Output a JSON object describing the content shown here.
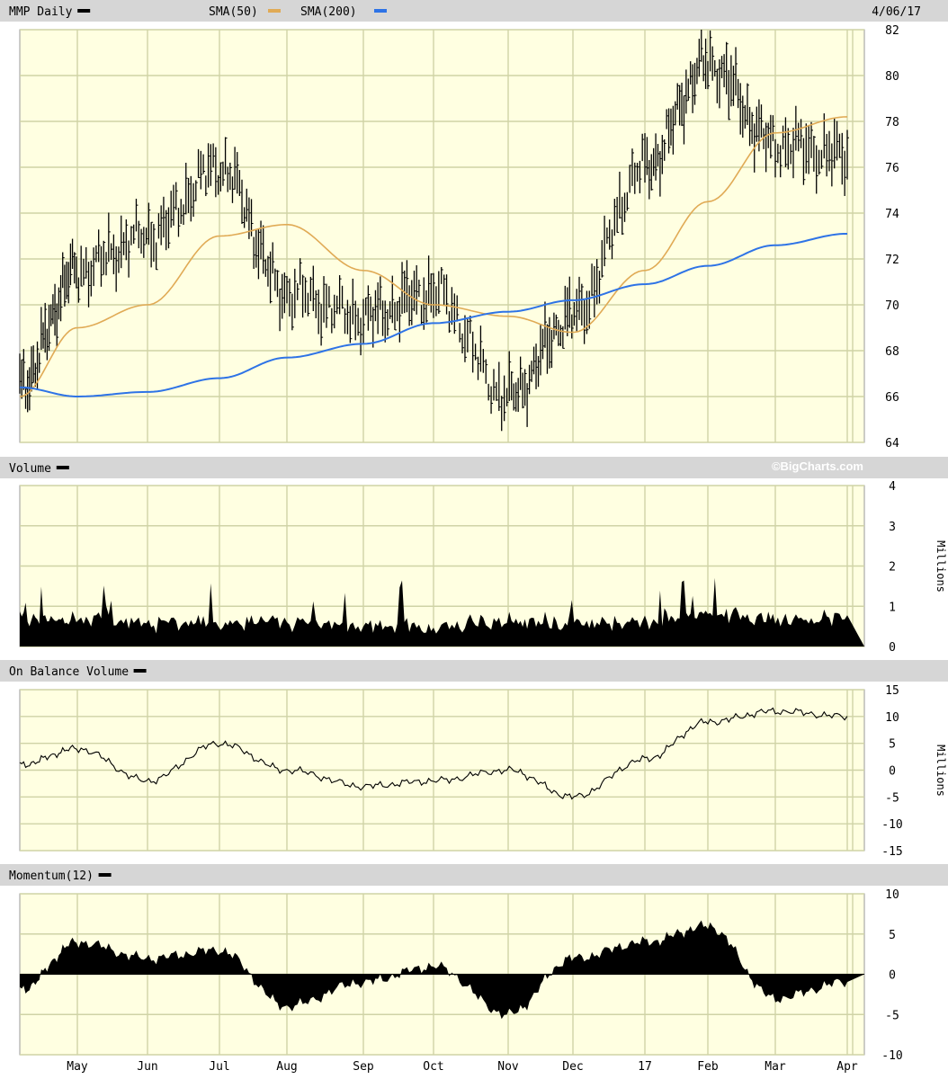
{
  "header": {
    "symbol_label": "MMP Daily",
    "sma50_label": "SMA(50)",
    "sma200_label": "SMA(200)",
    "date": "4/06/17"
  },
  "copyright": "©BigCharts.com",
  "colors": {
    "plot_bg": "#ffffe1",
    "grid": "#cfd3a6",
    "header_bg": "#d6d6d6",
    "price": "#000000",
    "sma50": "#e0aa55",
    "sma200": "#2e73e6"
  },
  "months": [
    "May",
    "Jun",
    "Jul",
    "Aug",
    "Sep",
    "Oct",
    "Nov",
    "Dec",
    "17",
    "Feb",
    "Mar",
    "Apr"
  ],
  "chart_data": [
    {
      "type": "bar",
      "title": "MMP Daily",
      "ylim": [
        64,
        82
      ],
      "y_ticks": [
        64,
        66,
        68,
        70,
        72,
        74,
        76,
        78,
        80,
        82
      ],
      "series": [
        {
          "name": "MMP Daily",
          "x": [
            "Apr 2016",
            "May",
            "Jun",
            "Jul",
            "Aug",
            "Sep",
            "Oct",
            "Nov",
            "Dec",
            "17",
            "Feb",
            "Mar",
            "Apr 2017"
          ],
          "values": [
            66.5,
            71.5,
            73.0,
            76.0,
            70.5,
            69.5,
            70.5,
            66.0,
            69.5,
            76.0,
            80.5,
            77.0,
            76.5
          ]
        },
        {
          "name": "SMA(50)",
          "x": [
            "Apr 2016",
            "May",
            "Jun",
            "Jul",
            "Aug",
            "Sep",
            "Oct",
            "Nov",
            "Dec",
            "17",
            "Feb",
            "Mar",
            "Apr 2017"
          ],
          "values": [
            66.0,
            69.0,
            70.0,
            73.0,
            73.5,
            71.5,
            70.0,
            69.5,
            68.8,
            71.5,
            74.5,
            77.5,
            78.2
          ]
        },
        {
          "name": "SMA(200)",
          "x": [
            "Apr 2016",
            "May",
            "Jun",
            "Jul",
            "Aug",
            "Sep",
            "Oct",
            "Nov",
            "Dec",
            "17",
            "Feb",
            "Mar",
            "Apr 2017"
          ],
          "values": [
            66.4,
            66.0,
            66.2,
            66.8,
            67.7,
            68.3,
            69.2,
            69.7,
            70.2,
            70.9,
            71.7,
            72.6,
            73.1
          ]
        }
      ]
    },
    {
      "type": "area",
      "title": "Volume",
      "ylabel": "Millions",
      "ylim": [
        0,
        4
      ],
      "y_ticks": [
        0,
        1,
        2,
        3,
        4
      ],
      "series": [
        {
          "name": "Volume",
          "x": [
            "Apr 2016",
            "May",
            "Jun",
            "Jul",
            "Aug",
            "Sep",
            "Oct",
            "Nov",
            "Dec",
            "17",
            "Feb",
            "Mar",
            "Apr 2017"
          ],
          "values": [
            0.7,
            0.7,
            0.6,
            0.6,
            0.6,
            0.5,
            0.5,
            0.6,
            0.6,
            0.6,
            0.8,
            0.7,
            0.7
          ]
        }
      ]
    },
    {
      "type": "line",
      "title": "On Balance Volume",
      "ylabel": "Millions",
      "ylim": [
        -15,
        15
      ],
      "y_ticks": [
        -15,
        -10,
        -5,
        0,
        5,
        10,
        15
      ],
      "series": [
        {
          "name": "On Balance Volume",
          "x": [
            "Apr 2016",
            "May",
            "Jun",
            "Jul",
            "Aug",
            "Sep",
            "Oct",
            "Nov",
            "Dec",
            "17",
            "Feb",
            "Mar",
            "Apr 2017"
          ],
          "values": [
            1,
            4,
            -2,
            5,
            0,
            -3,
            -2,
            0,
            -5,
            2,
            9,
            11,
            10
          ]
        }
      ]
    },
    {
      "type": "area",
      "title": "Momentum(12)",
      "ylim": [
        -10,
        10
      ],
      "y_ticks": [
        -10,
        -5,
        0,
        5,
        10
      ],
      "series": [
        {
          "name": "Momentum(12)",
          "x": [
            "Apr 2016",
            "May",
            "Jun",
            "Jul",
            "Aug",
            "Sep",
            "Oct",
            "Nov",
            "Dec",
            "17",
            "Feb",
            "Mar",
            "Apr 2017"
          ],
          "values": [
            -2,
            4,
            2,
            3,
            -4,
            -1,
            1,
            -5,
            2,
            4,
            6,
            -3,
            -1
          ]
        }
      ]
    }
  ]
}
